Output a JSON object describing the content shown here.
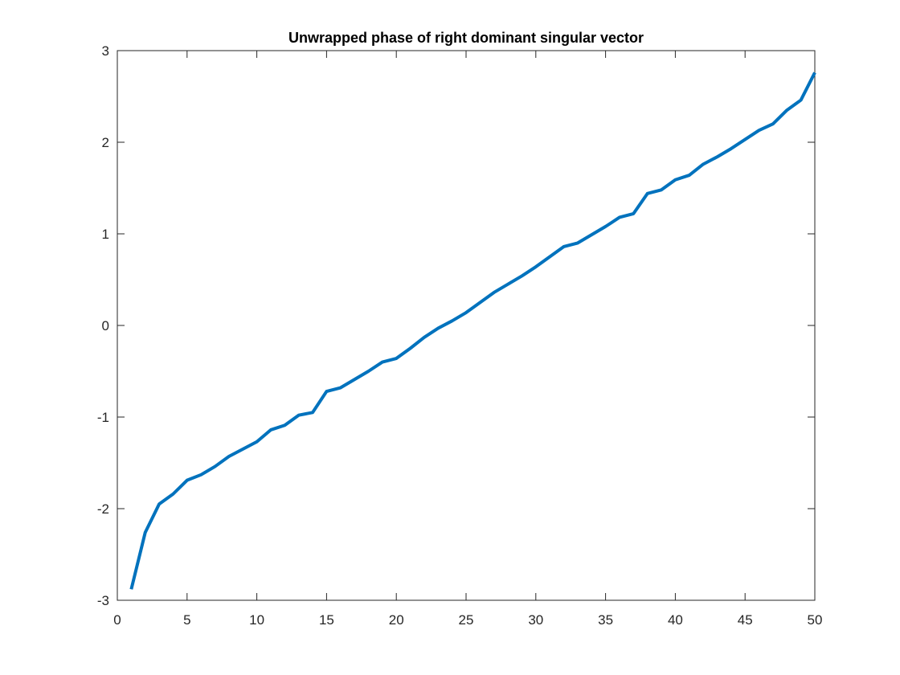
{
  "chart_data": {
    "type": "line",
    "title": "Unwrapped phase of right dominant singular vector",
    "xlabel": "",
    "ylabel": "",
    "xlim": [
      0,
      50
    ],
    "ylim": [
      -3,
      3
    ],
    "xticks": [
      0,
      5,
      10,
      15,
      20,
      25,
      30,
      35,
      40,
      45,
      50
    ],
    "yticks": [
      -3,
      -2,
      -1,
      0,
      1,
      2,
      3
    ],
    "xtick_labels": [
      "0",
      "5",
      "10",
      "15",
      "20",
      "25",
      "30",
      "35",
      "40",
      "45",
      "50"
    ],
    "ytick_labels": [
      "-3",
      "-2",
      "-1",
      "0",
      "1",
      "2",
      "3"
    ],
    "grid": false,
    "box": true,
    "series": [
      {
        "color": "#0072BD",
        "x": [
          1,
          2,
          3,
          4,
          5,
          6,
          7,
          8,
          9,
          10,
          11,
          12,
          13,
          14,
          15,
          16,
          17,
          18,
          19,
          20,
          21,
          22,
          23,
          24,
          25,
          26,
          27,
          28,
          29,
          30,
          31,
          32,
          33,
          34,
          35,
          36,
          37,
          38,
          39,
          40,
          41,
          42,
          43,
          44,
          45,
          46,
          47,
          48,
          49,
          50
        ],
        "y": [
          -2.88,
          -2.26,
          -1.95,
          -1.84,
          -1.69,
          -1.63,
          -1.54,
          -1.43,
          -1.35,
          -1.27,
          -1.14,
          -1.09,
          -0.98,
          -0.95,
          -0.72,
          -0.68,
          -0.59,
          -0.5,
          -0.4,
          -0.36,
          -0.25,
          -0.13,
          -0.03,
          0.05,
          0.14,
          0.25,
          0.36,
          0.45,
          0.54,
          0.64,
          0.75,
          0.86,
          0.9,
          0.99,
          1.08,
          1.18,
          1.22,
          1.44,
          1.48,
          1.59,
          1.64,
          1.76,
          1.84,
          1.93,
          2.03,
          2.13,
          2.2,
          2.35,
          2.46,
          2.76
        ]
      }
    ]
  }
}
